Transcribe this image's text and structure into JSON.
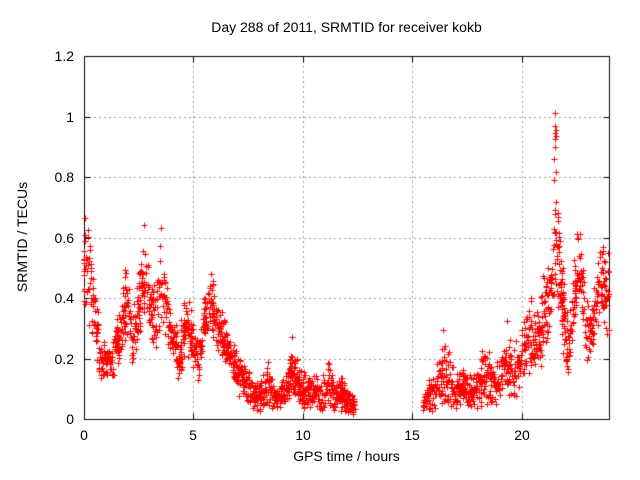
{
  "chart_data": {
    "type": "scatter",
    "title": "Day 288 of 2011, SRMTID for receiver kokb",
    "xlabel": "GPS time / hours",
    "ylabel": "SRMTID / TECUs",
    "xlim": [
      0,
      24
    ],
    "ylim": [
      0,
      1.2
    ],
    "xticks": [
      0,
      5,
      10,
      15,
      20
    ],
    "xtick_labels": [
      "0",
      "5",
      "10",
      "15",
      "20"
    ],
    "yticks": [
      0,
      0.2,
      0.4,
      0.6,
      0.8,
      1,
      1.2
    ],
    "ytick_labels": [
      "0",
      "0.2",
      "0.4",
      "0.6",
      "0.8",
      "1",
      "1.2"
    ],
    "grid": true,
    "grid_style": "dashed",
    "grid_color": "#9c9c9c",
    "border_color": "#000000",
    "marker": "plus",
    "marker_color": "#ff0000",
    "legend": "none",
    "time_segments": [
      [
        0.0,
        12.4
      ],
      [
        15.5,
        24.0
      ]
    ],
    "data_gap": [
      12.4,
      15.5
    ],
    "y_max_observed": 1.01,
    "envelope": [
      [
        0.0,
        0.33,
        0.66
      ],
      [
        0.3,
        0.3,
        0.62
      ],
      [
        0.55,
        0.18,
        0.42
      ],
      [
        0.8,
        0.12,
        0.3
      ],
      [
        1.05,
        0.1,
        0.26
      ],
      [
        1.35,
        0.12,
        0.3
      ],
      [
        1.65,
        0.18,
        0.42
      ],
      [
        1.95,
        0.28,
        0.55
      ],
      [
        2.2,
        0.15,
        0.36
      ],
      [
        2.45,
        0.2,
        0.48
      ],
      [
        2.7,
        0.3,
        0.63
      ],
      [
        3.0,
        0.28,
        0.58
      ],
      [
        3.2,
        0.2,
        0.45
      ],
      [
        3.5,
        0.28,
        0.62
      ],
      [
        3.75,
        0.25,
        0.52
      ],
      [
        4.0,
        0.17,
        0.4
      ],
      [
        4.35,
        0.12,
        0.3
      ],
      [
        4.65,
        0.22,
        0.45
      ],
      [
        4.95,
        0.17,
        0.38
      ],
      [
        5.25,
        0.1,
        0.3
      ],
      [
        5.55,
        0.25,
        0.45
      ],
      [
        5.8,
        0.28,
        0.5
      ],
      [
        6.1,
        0.22,
        0.45
      ],
      [
        6.4,
        0.18,
        0.36
      ],
      [
        6.8,
        0.12,
        0.28
      ],
      [
        7.2,
        0.06,
        0.22
      ],
      [
        7.6,
        0.04,
        0.18
      ],
      [
        8.0,
        0.02,
        0.13
      ],
      [
        8.4,
        0.04,
        0.2
      ],
      [
        8.8,
        0.02,
        0.12
      ],
      [
        9.2,
        0.03,
        0.16
      ],
      [
        9.5,
        0.08,
        0.27
      ],
      [
        9.8,
        0.04,
        0.2
      ],
      [
        10.1,
        0.03,
        0.16
      ],
      [
        10.45,
        0.04,
        0.18
      ],
      [
        10.8,
        0.02,
        0.12
      ],
      [
        11.15,
        0.04,
        0.24
      ],
      [
        11.45,
        0.02,
        0.15
      ],
      [
        11.8,
        0.02,
        0.16
      ],
      [
        12.1,
        0.02,
        0.12
      ],
      [
        12.4,
        0.01,
        0.08
      ],
      [
        15.5,
        0.01,
        0.1
      ],
      [
        15.8,
        0.02,
        0.17
      ],
      [
        16.1,
        0.03,
        0.2
      ],
      [
        16.4,
        0.04,
        0.29
      ],
      [
        16.7,
        0.04,
        0.24
      ],
      [
        17.0,
        0.02,
        0.15
      ],
      [
        17.3,
        0.04,
        0.22
      ],
      [
        17.6,
        0.02,
        0.15
      ],
      [
        18.0,
        0.03,
        0.18
      ],
      [
        18.35,
        0.05,
        0.28
      ],
      [
        18.7,
        0.04,
        0.22
      ],
      [
        19.0,
        0.05,
        0.25
      ],
      [
        19.3,
        0.07,
        0.32
      ],
      [
        19.6,
        0.05,
        0.25
      ],
      [
        19.9,
        0.09,
        0.3
      ],
      [
        20.2,
        0.13,
        0.38
      ],
      [
        20.5,
        0.17,
        0.45
      ],
      [
        20.75,
        0.14,
        0.4
      ],
      [
        21.0,
        0.2,
        0.5
      ],
      [
        21.3,
        0.28,
        0.6
      ],
      [
        21.55,
        0.45,
        0.8
      ],
      [
        21.75,
        0.3,
        0.65
      ],
      [
        21.95,
        0.18,
        0.48
      ],
      [
        22.15,
        0.1,
        0.35
      ],
      [
        22.4,
        0.28,
        0.55
      ],
      [
        22.6,
        0.4,
        0.68
      ],
      [
        22.8,
        0.28,
        0.55
      ],
      [
        23.05,
        0.15,
        0.4
      ],
      [
        23.3,
        0.2,
        0.48
      ],
      [
        23.6,
        0.35,
        0.65
      ],
      [
        23.8,
        0.28,
        0.6
      ],
      [
        24.0,
        0.2,
        0.6
      ]
    ],
    "outliers": [
      [
        21.52,
        1.01
      ],
      [
        21.55,
        0.97
      ],
      [
        21.56,
        0.955
      ],
      [
        21.54,
        0.945
      ],
      [
        21.57,
        0.935
      ],
      [
        21.53,
        0.925
      ],
      [
        21.55,
        0.9
      ],
      [
        21.5,
        0.86
      ],
      [
        21.56,
        0.815
      ],
      [
        21.5,
        0.79
      ],
      [
        0.05,
        0.665
      ],
      [
        2.72,
        0.64
      ],
      [
        3.52,
        0.63
      ],
      [
        9.52,
        0.27
      ],
      [
        16.42,
        0.295
      ],
      [
        19.32,
        0.325
      ]
    ],
    "epoch_step": 0.033,
    "seed": 7
  }
}
